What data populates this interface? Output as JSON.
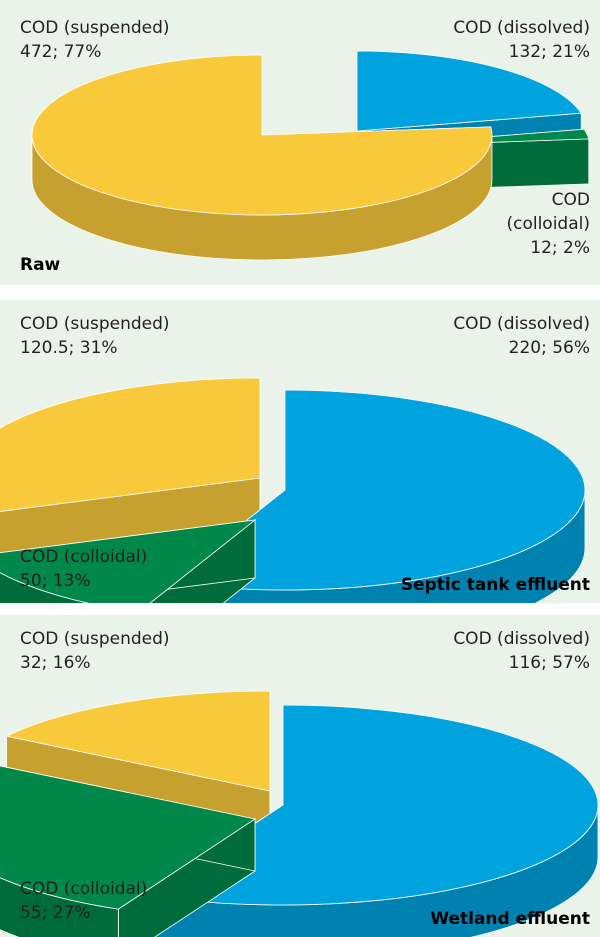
{
  "chart_data": [
    {
      "type": "pie",
      "title": "Raw",
      "categories": [
        "COD (suspended)",
        "COD (dissolved)",
        "COD (colloidal)"
      ],
      "values": [
        472,
        132,
        12
      ],
      "value_labels": [
        "472; 77%",
        "132; 21%",
        "12; 2%"
      ],
      "colors": [
        "#f9c93c",
        "#00a3dd",
        "#00874a"
      ]
    },
    {
      "type": "pie",
      "title": "Septic tank effluent",
      "categories": [
        "COD (suspended)",
        "COD (dissolved)",
        "COD (colloidal)"
      ],
      "values": [
        120.5,
        220,
        50
      ],
      "value_labels": [
        "120.5; 31%",
        "220; 56%",
        "50; 13%"
      ],
      "colors": [
        "#f9c93c",
        "#00a3dd",
        "#00874a"
      ]
    },
    {
      "type": "pie",
      "title": "Wetland effluent",
      "categories": [
        "COD (suspended)",
        "COD (dissolved)",
        "COD (colloidal)"
      ],
      "values": [
        32,
        116,
        55
      ],
      "value_labels": [
        "32; 16%",
        "116; 57%",
        "55; 27%"
      ],
      "colors": [
        "#f9c93c",
        "#00a3dd",
        "#00874a"
      ]
    }
  ]
}
